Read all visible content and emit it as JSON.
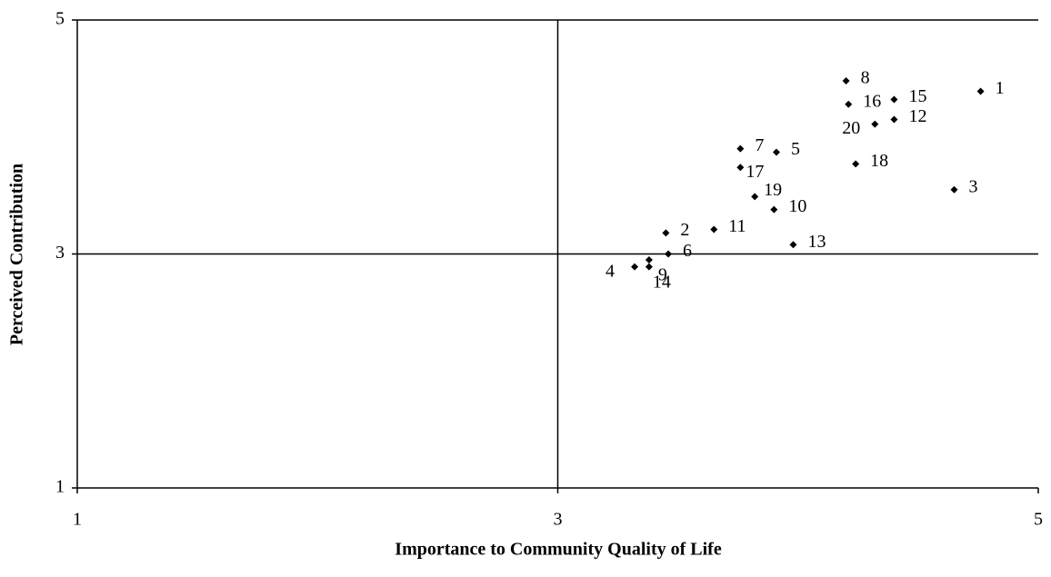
{
  "chart_data": {
    "type": "scatter",
    "x_label": "Importance to Community Quality of Life",
    "y_label": "Perceived Contribution",
    "point_labels": [
      "1",
      "2",
      "3",
      "4",
      "5",
      "6",
      "7",
      "8",
      "9",
      "10",
      "11",
      "12",
      "13",
      "14",
      "15",
      "16",
      "17",
      "18",
      "19",
      "20"
    ],
    "x": [
      4.76,
      3.45,
      4.65,
      3.32,
      3.91,
      3.46,
      3.76,
      4.2,
      3.38,
      3.9,
      3.65,
      4.4,
      3.98,
      3.38,
      4.4,
      4.21,
      3.76,
      4.24,
      3.82,
      4.32
    ],
    "y": [
      4.39,
      3.18,
      3.55,
      2.89,
      3.87,
      3.0,
      3.9,
      4.48,
      2.95,
      3.38,
      3.21,
      4.15,
      3.08,
      2.89,
      4.32,
      4.28,
      3.74,
      3.77,
      3.49,
      4.11
    ],
    "color": "#000000",
    "xlim": [
      1,
      5
    ],
    "ylim": [
      1,
      5
    ],
    "xticks": [
      1,
      3,
      5
    ],
    "yticks": [
      1,
      3,
      5
    ],
    "grid": true
  }
}
